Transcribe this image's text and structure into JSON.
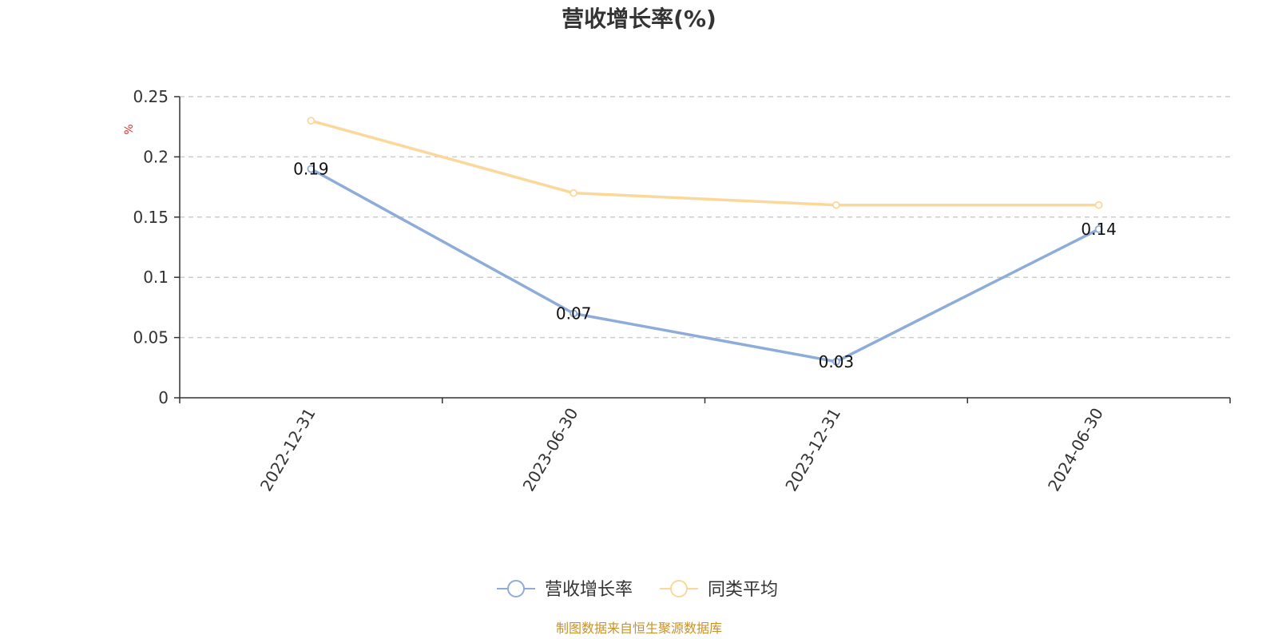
{
  "chart_data": {
    "type": "line",
    "title": "营收增长率(%)",
    "ylabel": "%",
    "categories": [
      "2022-12-31",
      "2023-06-30",
      "2023-12-31",
      "2024-06-30"
    ],
    "ylim": [
      0,
      0.25
    ],
    "yticks": [
      0,
      0.05,
      0.1,
      0.15,
      0.2,
      0.25
    ],
    "ytick_labels": [
      "0",
      "0.05",
      "0.1",
      "0.15",
      "0.2",
      "0.25"
    ],
    "grid": true,
    "legend_position": "bottom-center",
    "series": [
      {
        "name": "营收增长率",
        "values": [
          0.19,
          0.07,
          0.03,
          0.14
        ],
        "data_labels": [
          "0.19",
          "0.07",
          "0.03",
          "0.14"
        ],
        "color": "#8eacd9"
      },
      {
        "name": "同类平均",
        "values": [
          0.23,
          0.17,
          0.16,
          0.16
        ],
        "color": "#fbd89a"
      }
    ],
    "source": "制图数据来自恒生聚源数据库",
    "colors": {
      "axis": "#333333",
      "grid": "#cccccc",
      "unit_label": "#e03030",
      "source": "#c8922a"
    }
  }
}
